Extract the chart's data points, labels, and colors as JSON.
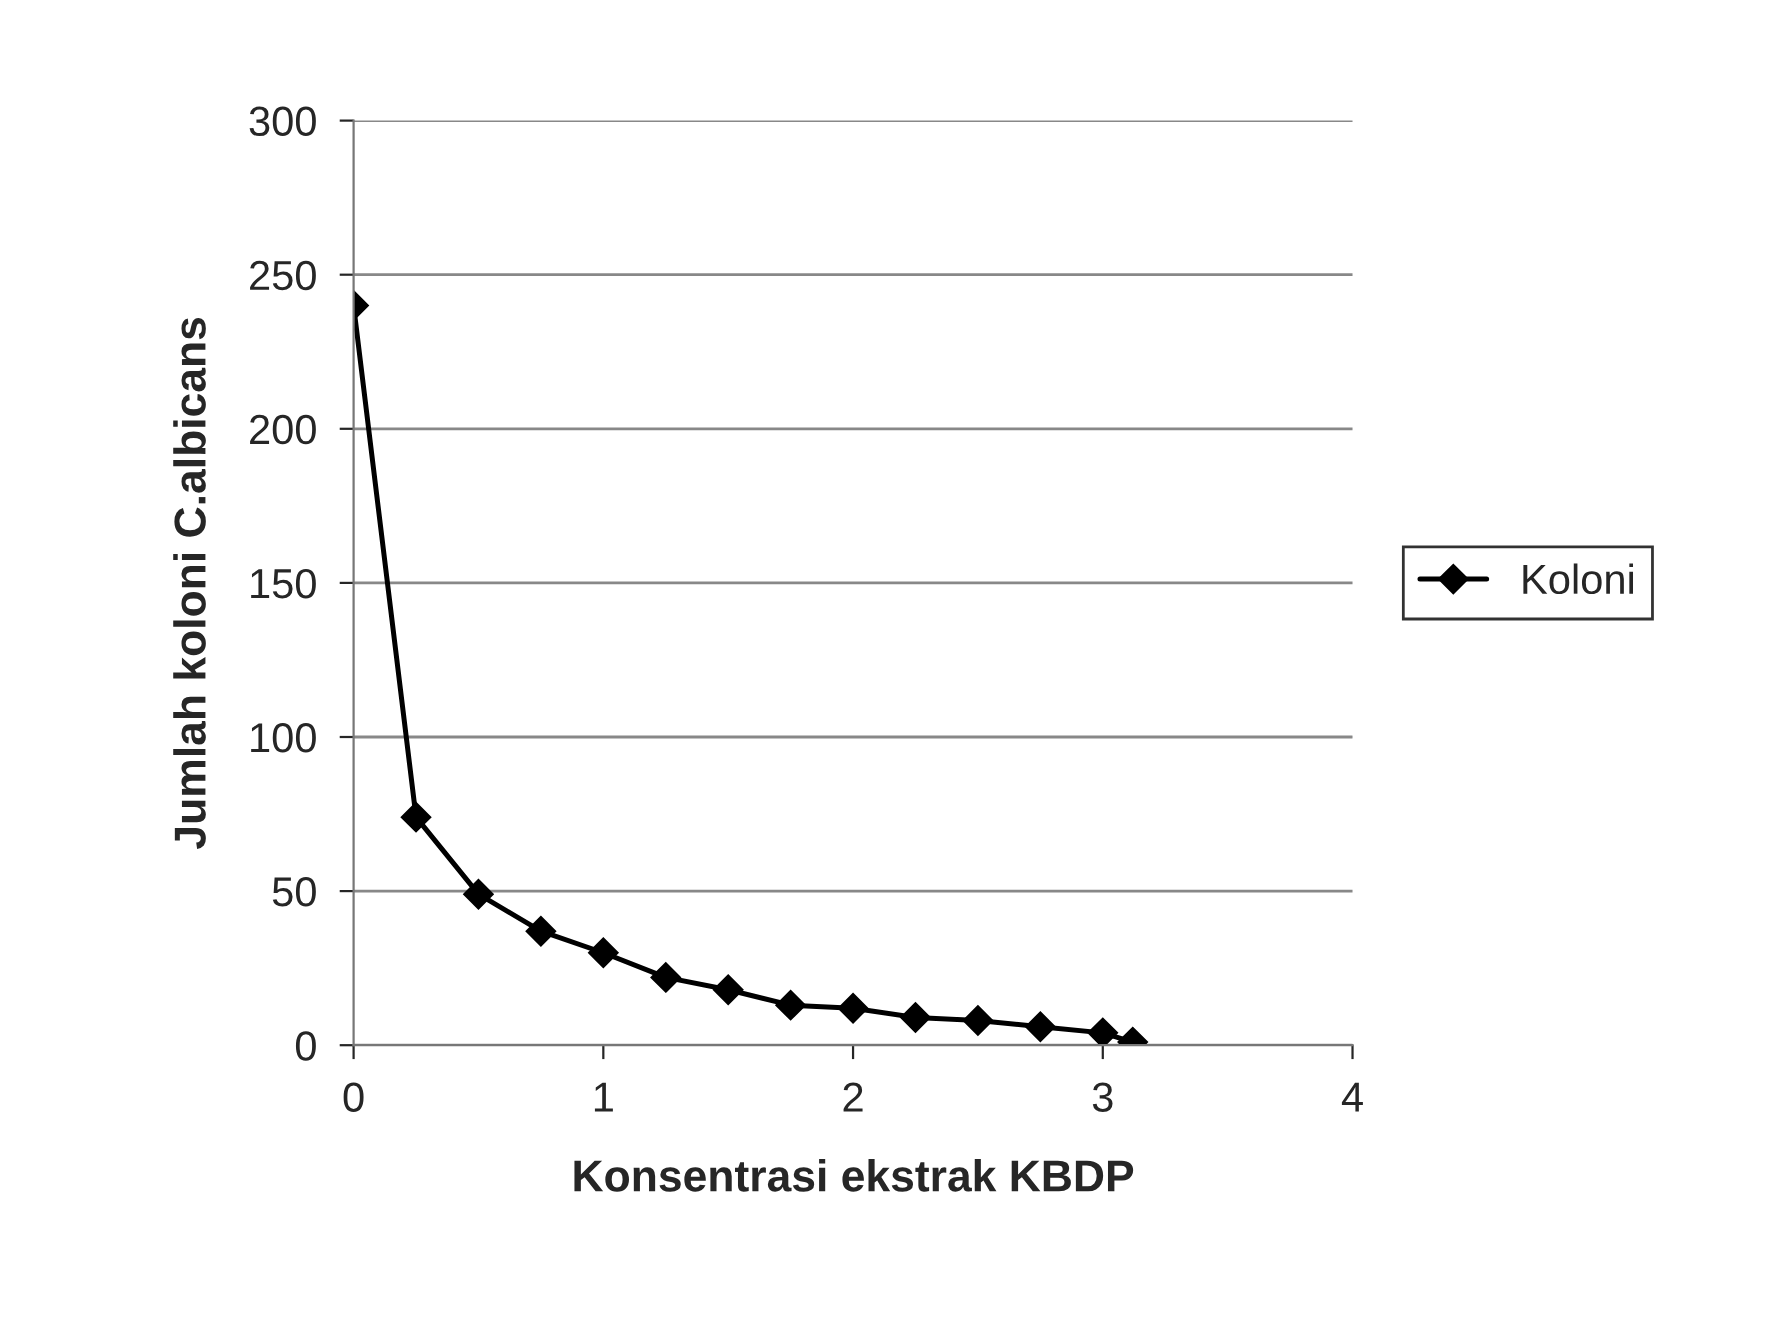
{
  "chart_data": {
    "type": "line",
    "xlabel": "Konsentrasi ekstrak KBDP",
    "ylabel": "Jumlah koloni C.albicans",
    "x": [
      0,
      0.25,
      0.5,
      0.75,
      1,
      1.25,
      1.5,
      1.75,
      2,
      2.25,
      2.5,
      2.75,
      3,
      3.12
    ],
    "series": [
      {
        "name": "Koloni",
        "color": "#000000",
        "values": [
          240,
          74,
          49,
          37,
          30,
          22,
          18,
          13,
          12,
          9,
          8,
          6,
          4,
          1
        ]
      }
    ],
    "xlim": [
      0,
      4
    ],
    "xticks": [
      0,
      1,
      2,
      3,
      4
    ],
    "ylim": [
      0,
      300
    ],
    "yticks": [
      0,
      50,
      100,
      150,
      200,
      250,
      300
    ],
    "grid": "y",
    "legend": "right",
    "marker": "diamond",
    "line_style": "solid"
  }
}
